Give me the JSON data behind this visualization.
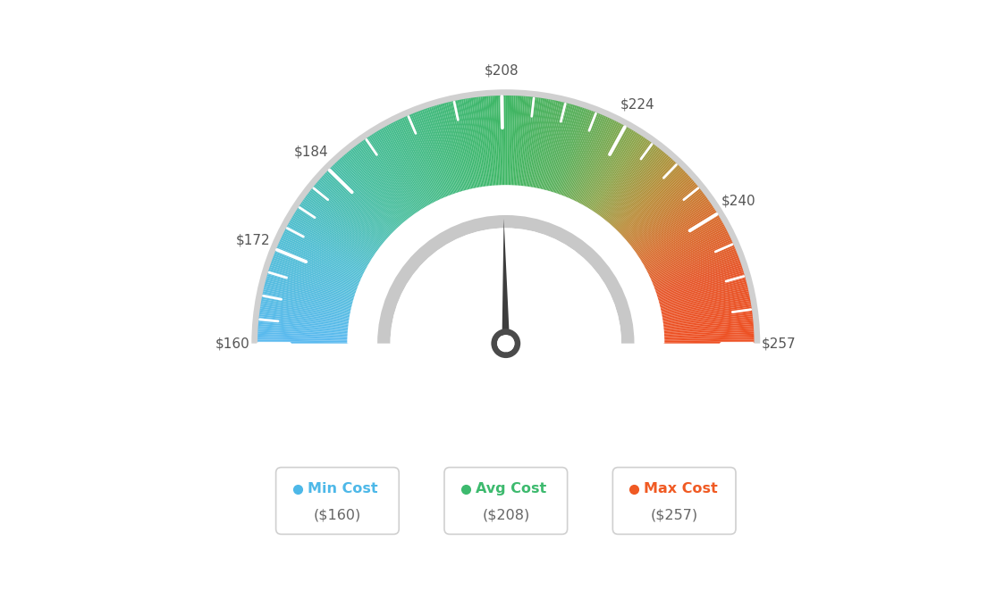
{
  "min_val": 160,
  "max_val": 257,
  "avg_val": 208,
  "tick_labels": [
    "$160",
    "$172",
    "$184",
    "$208",
    "$224",
    "$240",
    "$257"
  ],
  "tick_values": [
    160,
    172,
    184,
    208,
    224,
    240,
    257
  ],
  "legend_items": [
    {
      "label": "Min Cost",
      "value": "($160)",
      "color": "#4db8e8"
    },
    {
      "label": "Avg Cost",
      "value": "($208)",
      "color": "#3dba6e"
    },
    {
      "label": "Max Cost",
      "value": "($257)",
      "color": "#f05a23"
    }
  ],
  "legend_dot_colors": [
    "#4db8e8",
    "#3dba6e",
    "#f05a23"
  ],
  "bg_color": "#ffffff",
  "color_stops": [
    [
      0.0,
      [
        91,
        186,
        240
      ]
    ],
    [
      0.15,
      [
        80,
        190,
        210
      ]
    ],
    [
      0.27,
      [
        72,
        190,
        160
      ]
    ],
    [
      0.42,
      [
        65,
        185,
        120
      ]
    ],
    [
      0.5,
      [
        62,
        182,
        100
      ]
    ],
    [
      0.6,
      [
        90,
        175,
        90
      ]
    ],
    [
      0.68,
      [
        140,
        165,
        75
      ]
    ],
    [
      0.75,
      [
        185,
        140,
        55
      ]
    ],
    [
      0.82,
      [
        215,
        110,
        45
      ]
    ],
    [
      0.9,
      [
        230,
        85,
        40
      ]
    ],
    [
      1.0,
      [
        238,
        80,
        35
      ]
    ]
  ]
}
